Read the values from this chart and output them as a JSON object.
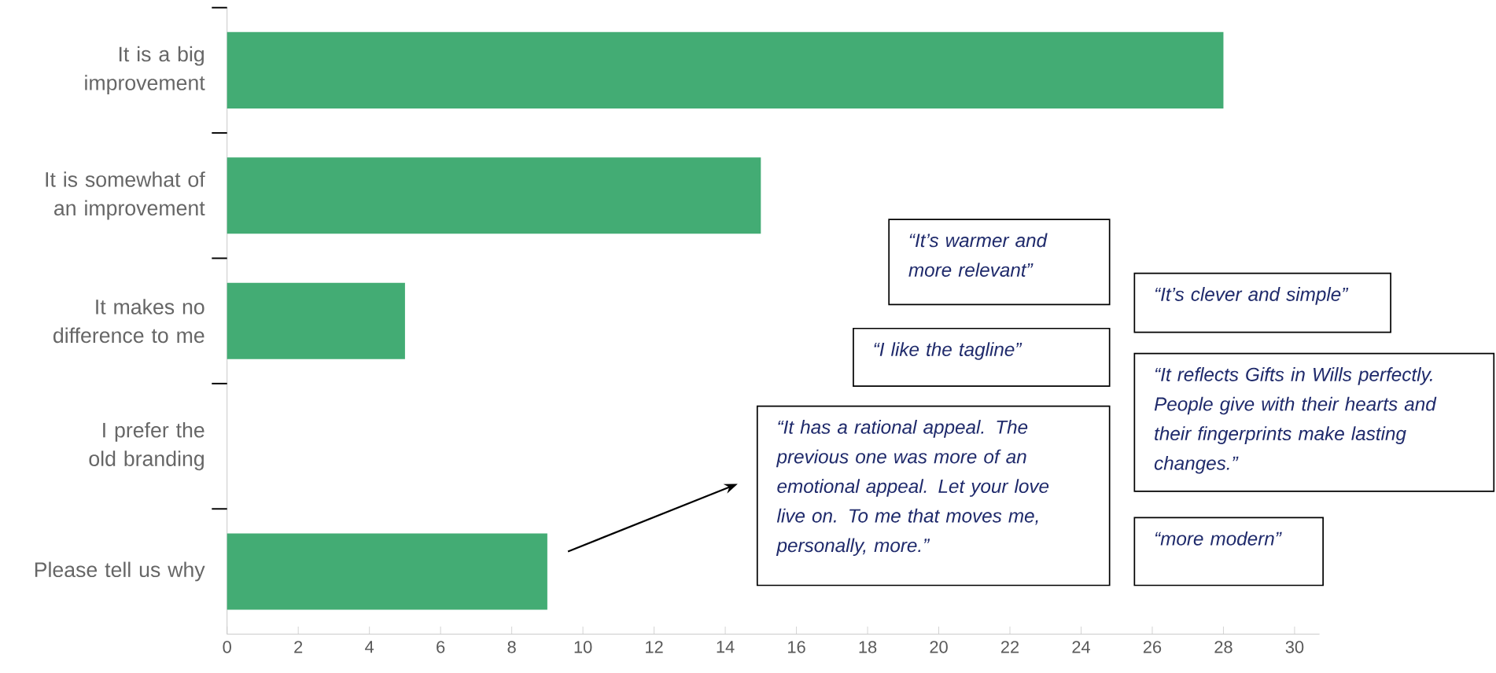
{
  "chart_data": {
    "type": "bar",
    "orientation": "horizontal",
    "categories": [
      "It is a big improvement",
      "It is somewhat of an improvement",
      "It makes no difference to me",
      "I prefer the old branding",
      "Please tell us why"
    ],
    "values": [
      28,
      15,
      5,
      0,
      9
    ],
    "color": "#43ac74",
    "xlim": [
      0,
      30.7
    ],
    "xticks": [
      0,
      2,
      4,
      6,
      8,
      10,
      12,
      14,
      16,
      18,
      20,
      22,
      24,
      26,
      28,
      30
    ],
    "annotations": [
      "“It’s warmer and more relevant”",
      "“It’s clever and simple”",
      "“I like the tagline”",
      "“It reflects Gifts in Wills perfectly. People give with their hearts and their fingerprints make lasting changes.”",
      "“It has a rational appeal. The previous one was more of an emotional appeal.  Let your love live on.  To me that moves me, personally, more.”",
      "“more modern”"
    ]
  }
}
